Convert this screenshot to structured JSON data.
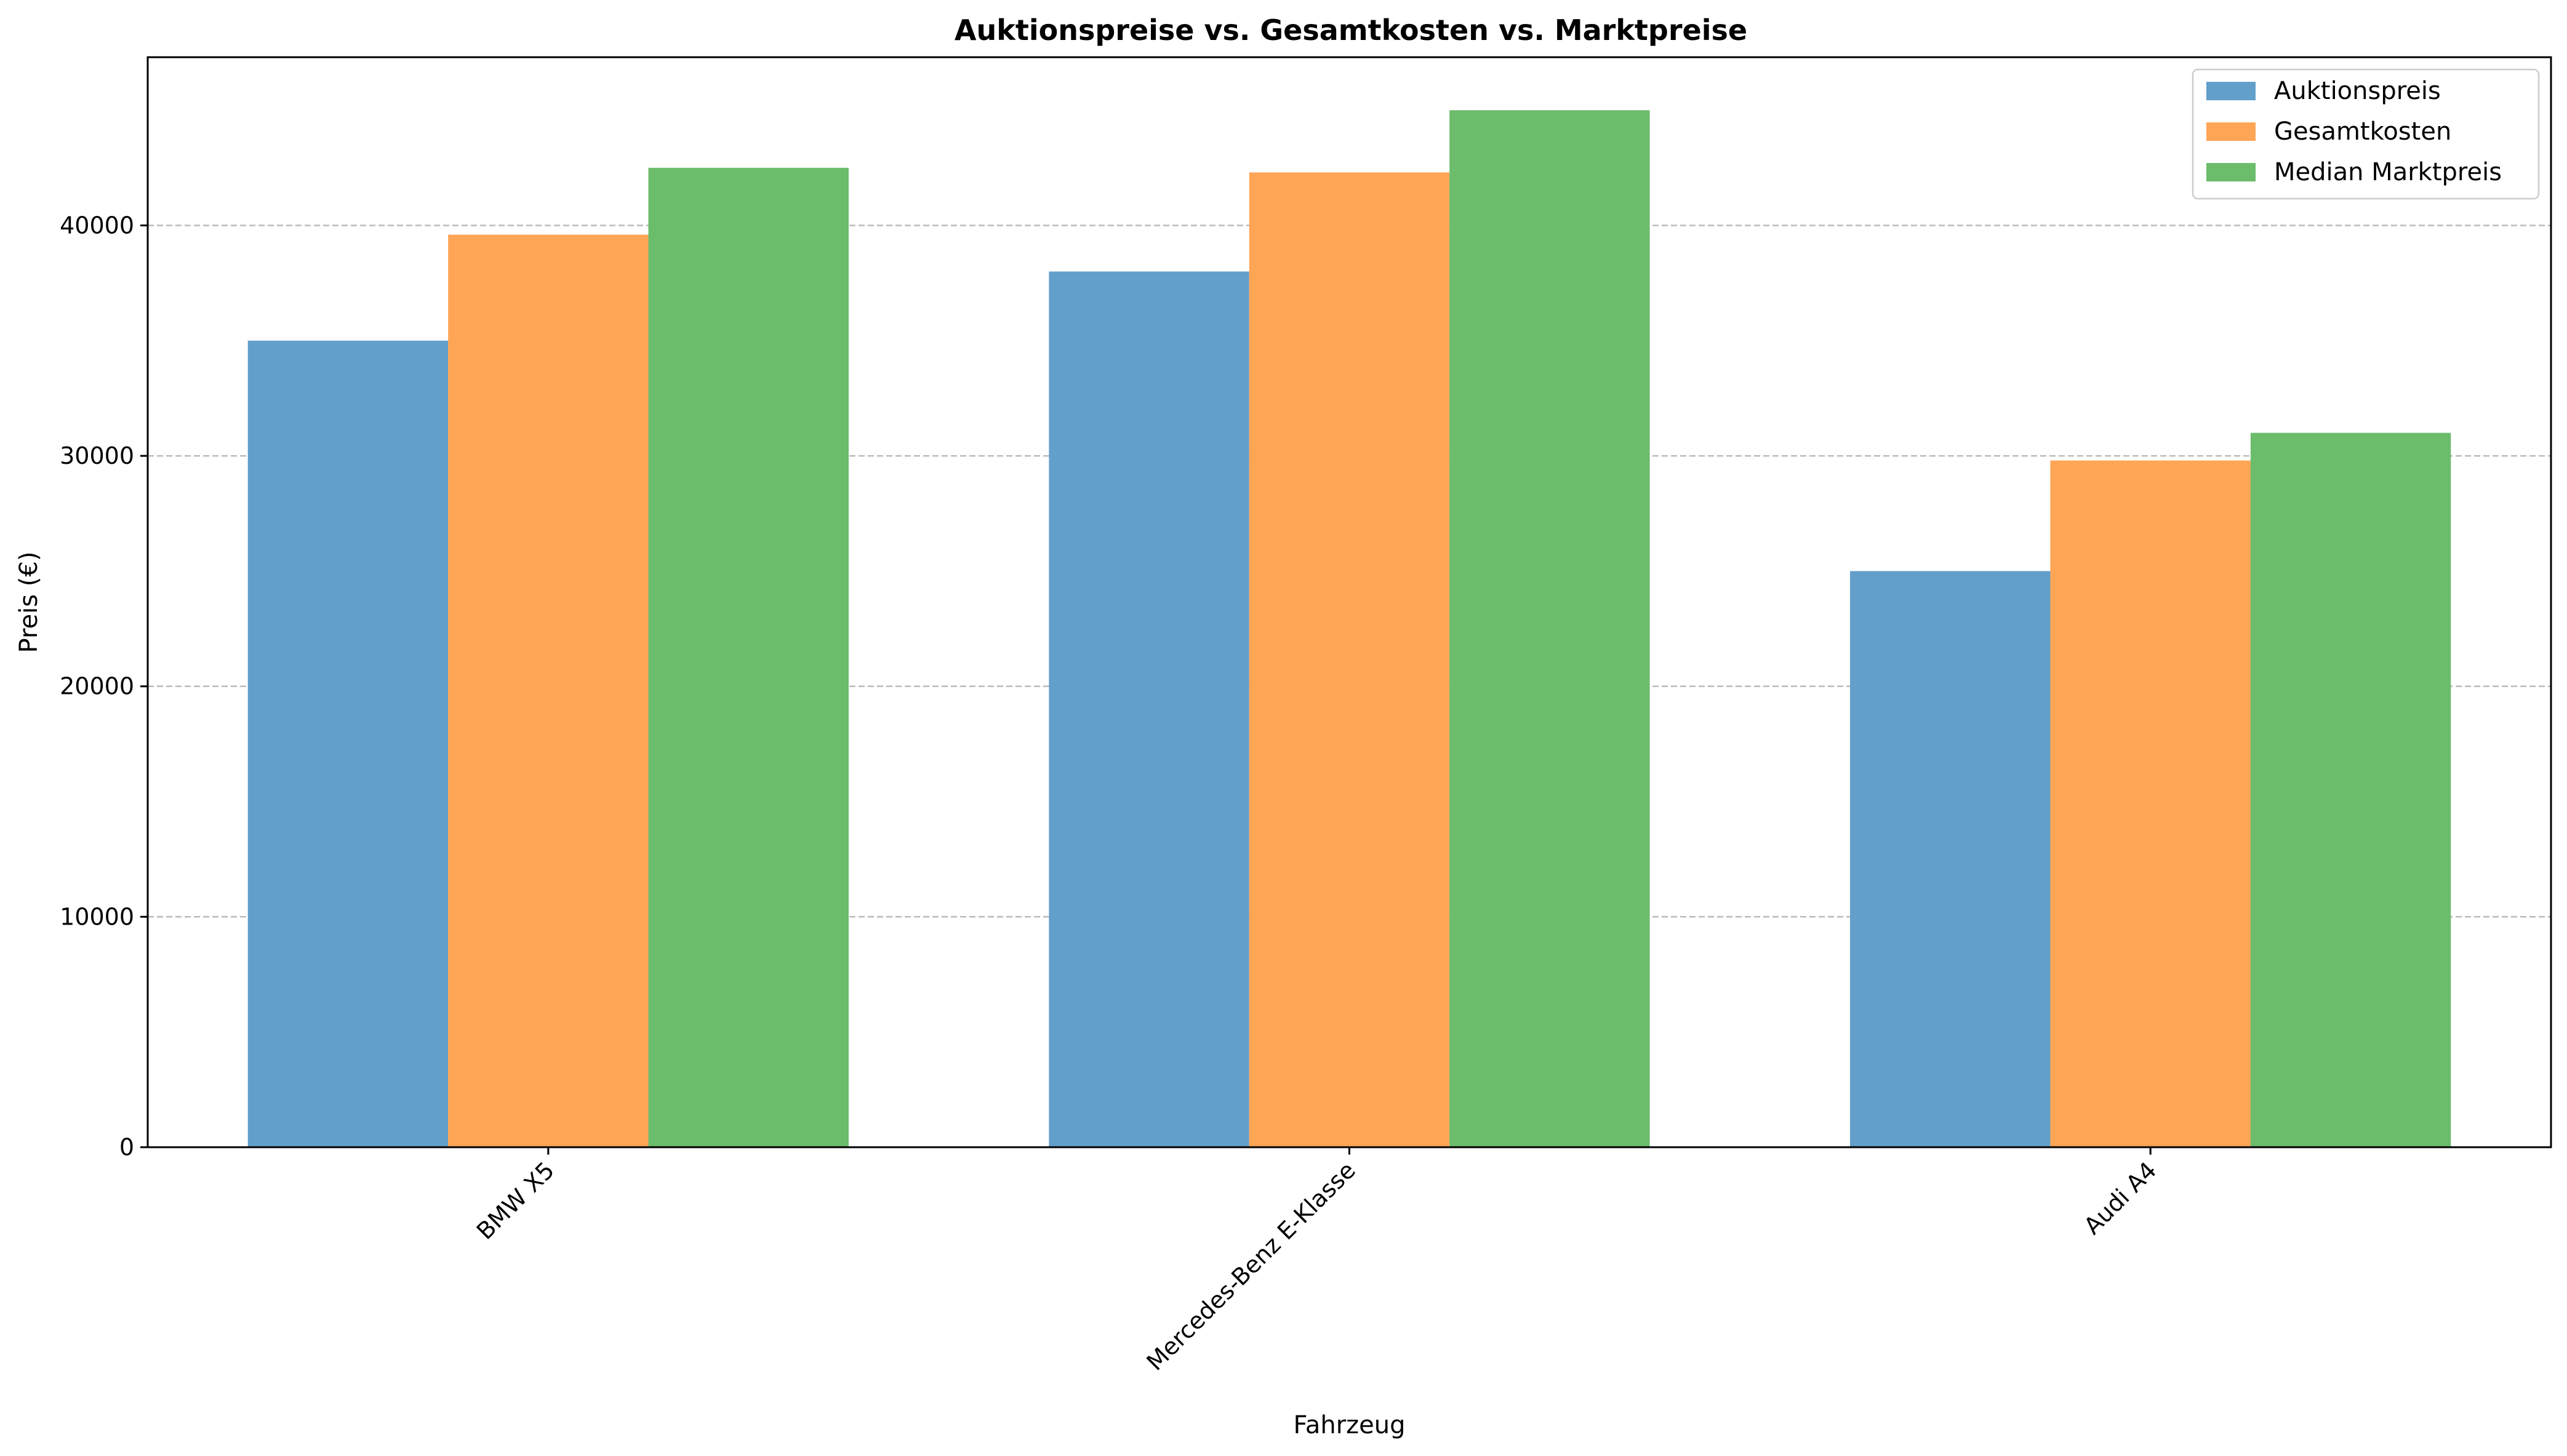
{
  "chart_data": {
    "type": "bar",
    "title": "Auktionspreise vs. Gesamtkosten vs. Marktpreise",
    "xlabel": "Fahrzeug",
    "ylabel": "Preis (€)",
    "categories": [
      "BMW X5",
      "Mercedes-Benz E-Klasse",
      "Audi A4"
    ],
    "series": [
      {
        "name": "Auktionspreis",
        "color": "#629fca",
        "values": [
          35000,
          38000,
          25000
        ]
      },
      {
        "name": "Gesamtkosten",
        "color": "#ffa556",
        "values": [
          39600,
          42300,
          29800
        ]
      },
      {
        "name": "Median Marktpreis",
        "color": "#6bbc6b",
        "values": [
          42500,
          45000,
          31000
        ]
      }
    ],
    "ylim": [
      0,
      47300
    ],
    "yticks": [
      0,
      10000,
      20000,
      30000,
      40000
    ],
    "grid": {
      "y": true,
      "style": "dashed"
    },
    "legend": "top-right"
  }
}
